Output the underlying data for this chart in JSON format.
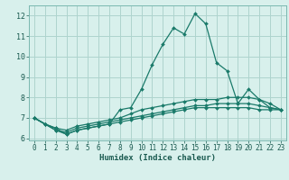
{
  "xlabel": "Humidex (Indice chaleur)",
  "x_values": [
    0,
    1,
    2,
    3,
    4,
    5,
    6,
    7,
    8,
    9,
    10,
    11,
    12,
    13,
    14,
    15,
    16,
    17,
    18,
    19,
    20,
    21,
    22,
    23
  ],
  "lines": [
    [
      7.0,
      6.7,
      6.5,
      6.2,
      6.4,
      6.5,
      6.6,
      6.7,
      7.4,
      7.5,
      8.4,
      9.6,
      10.6,
      11.4,
      11.1,
      12.1,
      11.6,
      9.7,
      9.3,
      7.7,
      8.4,
      7.9,
      7.5,
      7.4
    ],
    [
      7.0,
      6.7,
      6.5,
      6.4,
      6.6,
      6.7,
      6.8,
      6.9,
      7.0,
      7.2,
      7.4,
      7.5,
      7.6,
      7.7,
      7.8,
      7.9,
      7.9,
      7.9,
      8.0,
      8.0,
      8.0,
      7.9,
      7.7,
      7.4
    ],
    [
      7.0,
      6.7,
      6.4,
      6.3,
      6.5,
      6.6,
      6.7,
      6.8,
      6.9,
      7.0,
      7.1,
      7.2,
      7.3,
      7.4,
      7.5,
      7.6,
      7.6,
      7.7,
      7.7,
      7.7,
      7.7,
      7.6,
      7.5,
      7.4
    ],
    [
      7.0,
      6.7,
      6.4,
      6.2,
      6.4,
      6.5,
      6.6,
      6.7,
      6.8,
      6.9,
      7.0,
      7.1,
      7.2,
      7.3,
      7.4,
      7.5,
      7.5,
      7.5,
      7.5,
      7.5,
      7.5,
      7.4,
      7.4,
      7.4
    ]
  ],
  "line_color": "#1a7a6a",
  "bg_color": "#d8f0ec",
  "grid_color": "#aed4ce",
  "xlim": [
    -0.5,
    23.5
  ],
  "ylim": [
    5.9,
    12.5
  ],
  "yticks": [
    6,
    7,
    8,
    9,
    10,
    11,
    12
  ],
  "xticks": [
    0,
    1,
    2,
    3,
    4,
    5,
    6,
    7,
    8,
    9,
    10,
    11,
    12,
    13,
    14,
    15,
    16,
    17,
    18,
    19,
    20,
    21,
    22,
    23
  ],
  "marker": "D",
  "markersize": 2.0,
  "linewidth": 0.9,
  "tick_fontsize": 5.5,
  "xlabel_fontsize": 6.5
}
